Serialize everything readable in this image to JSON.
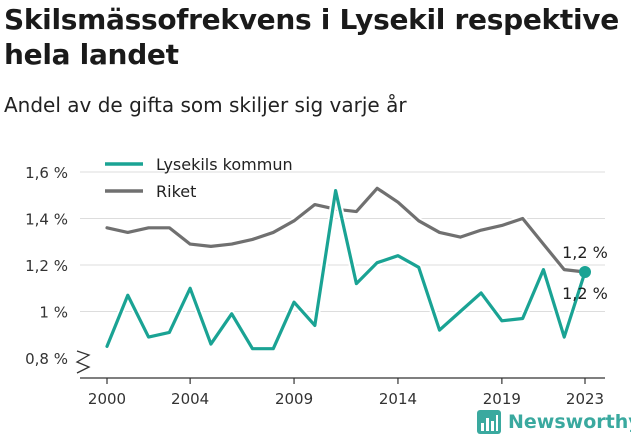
{
  "header": {
    "title": "Skilsmässofrekvens i Lysekil respektive hela landet",
    "subtitle": "Andel av de gifta som skiljer sig varje år"
  },
  "brand": {
    "name": "Newsworthy",
    "icon": "bar-chart-icon",
    "color": "#3aa99f"
  },
  "chart_data": {
    "type": "line",
    "title": "Skilsmässofrekvens i Lysekil respektive hela landet",
    "subtitle": "Andel av de gifta som skiljer sig varje år",
    "x": [
      2000,
      2001,
      2002,
      2003,
      2004,
      2005,
      2006,
      2007,
      2008,
      2009,
      2010,
      2011,
      2012,
      2013,
      2014,
      2015,
      2016,
      2017,
      2018,
      2019,
      2020,
      2021,
      2022,
      2023
    ],
    "series": [
      {
        "name": "Lysekils kommun",
        "color": "#1aa394",
        "values": [
          0.85,
          1.07,
          0.89,
          0.91,
          1.1,
          0.86,
          0.99,
          0.84,
          0.84,
          1.04,
          0.94,
          1.52,
          1.12,
          1.21,
          1.24,
          1.19,
          0.92,
          1.0,
          1.08,
          0.96,
          0.97,
          1.18,
          0.89,
          1.17
        ],
        "end_label": "1,2 %"
      },
      {
        "name": "Riket",
        "color": "#707070",
        "values": [
          1.36,
          1.34,
          1.36,
          1.36,
          1.29,
          1.28,
          1.29,
          1.31,
          1.34,
          1.39,
          1.46,
          1.44,
          1.43,
          1.53,
          1.47,
          1.39,
          1.34,
          1.32,
          1.35,
          1.37,
          1.4,
          1.29,
          1.18,
          1.17
        ],
        "end_label": "1,2 %"
      }
    ],
    "y_ticks": [
      {
        "value": 0.8,
        "label": "0,8 %"
      },
      {
        "value": 1.0,
        "label": "1 %"
      },
      {
        "value": 1.2,
        "label": "1,2 %"
      },
      {
        "value": 1.4,
        "label": "1,4 %"
      },
      {
        "value": 1.6,
        "label": "1,6 %"
      }
    ],
    "x_ticks": [
      {
        "value": 2000,
        "label": "2000"
      },
      {
        "value": 2004,
        "label": "2004"
      },
      {
        "value": 2009,
        "label": "2009"
      },
      {
        "value": 2014,
        "label": "2014"
      },
      {
        "value": 2019,
        "label": "2019"
      },
      {
        "value": 2023,
        "label": "2023"
      }
    ],
    "ylim": [
      0.8,
      1.6
    ],
    "xlim": [
      2000,
      2023
    ],
    "grid": "horizontal",
    "legend_position": "top-left",
    "axis_break": true
  }
}
